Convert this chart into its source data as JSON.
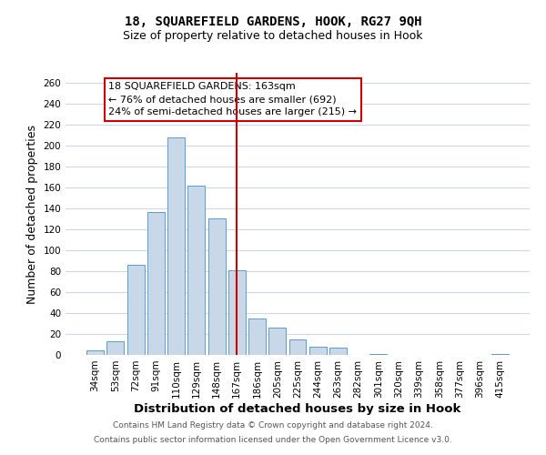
{
  "title_line1": "18, SQUAREFIELD GARDENS, HOOK, RG27 9QH",
  "title_line2": "Size of property relative to detached houses in Hook",
  "xlabel": "Distribution of detached houses by size in Hook",
  "ylabel": "Number of detached properties",
  "bar_labels": [
    "34sqm",
    "53sqm",
    "72sqm",
    "91sqm",
    "110sqm",
    "129sqm",
    "148sqm",
    "167sqm",
    "186sqm",
    "205sqm",
    "225sqm",
    "244sqm",
    "263sqm",
    "282sqm",
    "301sqm",
    "320sqm",
    "339sqm",
    "358sqm",
    "377sqm",
    "396sqm",
    "415sqm"
  ],
  "bar_values": [
    4,
    13,
    86,
    137,
    208,
    162,
    131,
    81,
    35,
    26,
    15,
    8,
    7,
    0,
    1,
    0,
    0,
    0,
    0,
    0,
    1
  ],
  "bar_color": "#c8d8e8",
  "bar_edge_color": "#5a9ec9",
  "vline_x": 7,
  "vline_color": "#cc0000",
  "annotation_line1": "18 SQUAREFIELD GARDENS: 163sqm",
  "annotation_line2": "← 76% of detached houses are smaller (692)",
  "annotation_line3": "24% of semi-detached houses are larger (215) →",
  "annotation_box_color": "#ffffff",
  "annotation_box_edge": "#cc0000",
  "ylim": [
    0,
    270
  ],
  "yticks": [
    0,
    20,
    40,
    60,
    80,
    100,
    120,
    140,
    160,
    180,
    200,
    220,
    240,
    260
  ],
  "footer_line1": "Contains HM Land Registry data © Crown copyright and database right 2024.",
  "footer_line2": "Contains public sector information licensed under the Open Government Licence v3.0.",
  "background_color": "#ffffff",
  "grid_color": "#d0d8e8",
  "title_fontsize": 10,
  "subtitle_fontsize": 9,
  "xlabel_fontsize": 9.5,
  "ylabel_fontsize": 9,
  "tick_fontsize": 7.5,
  "annotation_fontsize": 8,
  "footer_fontsize": 6.5
}
